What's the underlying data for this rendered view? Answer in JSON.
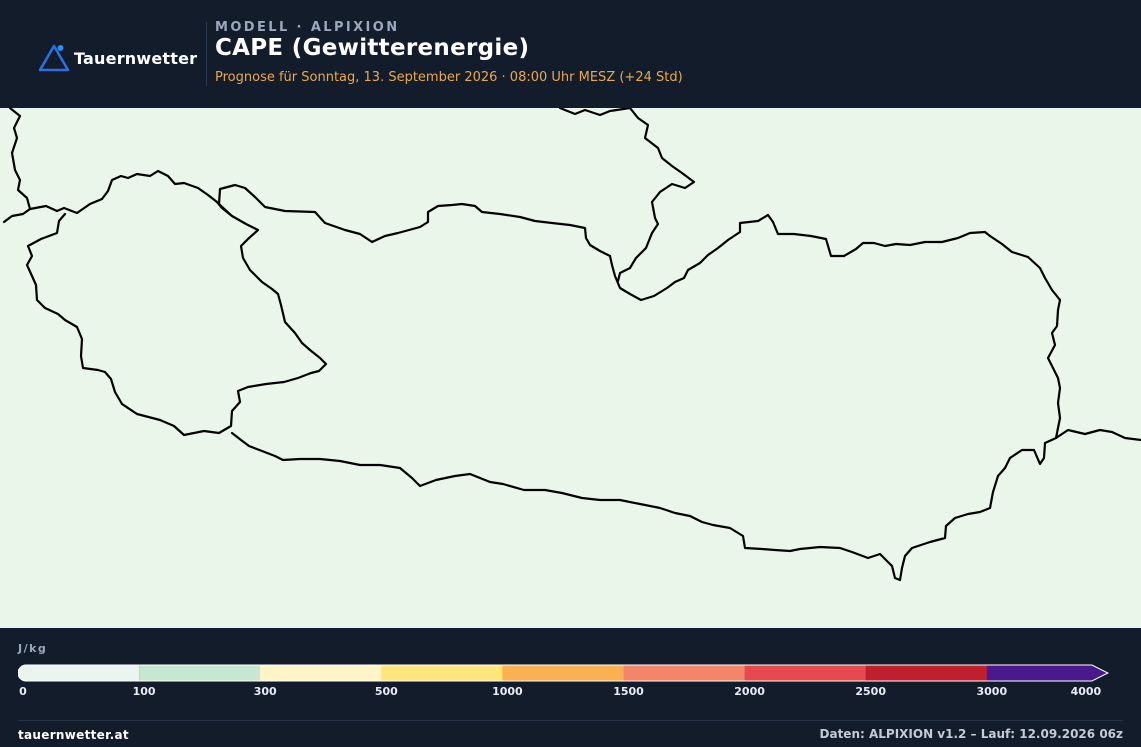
{
  "header": {
    "brand": "Tauernwetter",
    "eyebrow": "MODELL · ALPIXION",
    "title": "CAPE (Gewitterenergie)",
    "subtitle": "Prognose für Sonntag, 13. September 2026 · 08:00 Uhr MESZ  (+24 Std)"
  },
  "map": {
    "background_color": "#ebf6eb",
    "border_color": "#000000"
  },
  "legend": {
    "unit": "J/kg",
    "classes": [
      {
        "from": 0,
        "to": 100,
        "color": "#e9f5ee"
      },
      {
        "from": 100,
        "to": 300,
        "color": "#c7e7d1"
      },
      {
        "from": 300,
        "to": 500,
        "color": "#fff4c6"
      },
      {
        "from": 500,
        "to": 1000,
        "color": "#ffe57a"
      },
      {
        "from": 1000,
        "to": 1500,
        "color": "#fbb051"
      },
      {
        "from": 1500,
        "to": 2000,
        "color": "#f5856a"
      },
      {
        "from": 2000,
        "to": 2500,
        "color": "#e6494e"
      },
      {
        "from": 2500,
        "to": 3000,
        "color": "#c11f2e"
      },
      {
        "from": 3000,
        "to": 4000,
        "color": "#4a1a8d"
      }
    ],
    "ticks": [
      "0",
      "100",
      "300",
      "500",
      "1000",
      "1500",
      "2000",
      "2500",
      "3000",
      "4000"
    ]
  },
  "footer": {
    "site": "tauernwetter.at",
    "credits": "Daten: ALPIXION v1.2 – Lauf: 12.09.2026 06z"
  }
}
